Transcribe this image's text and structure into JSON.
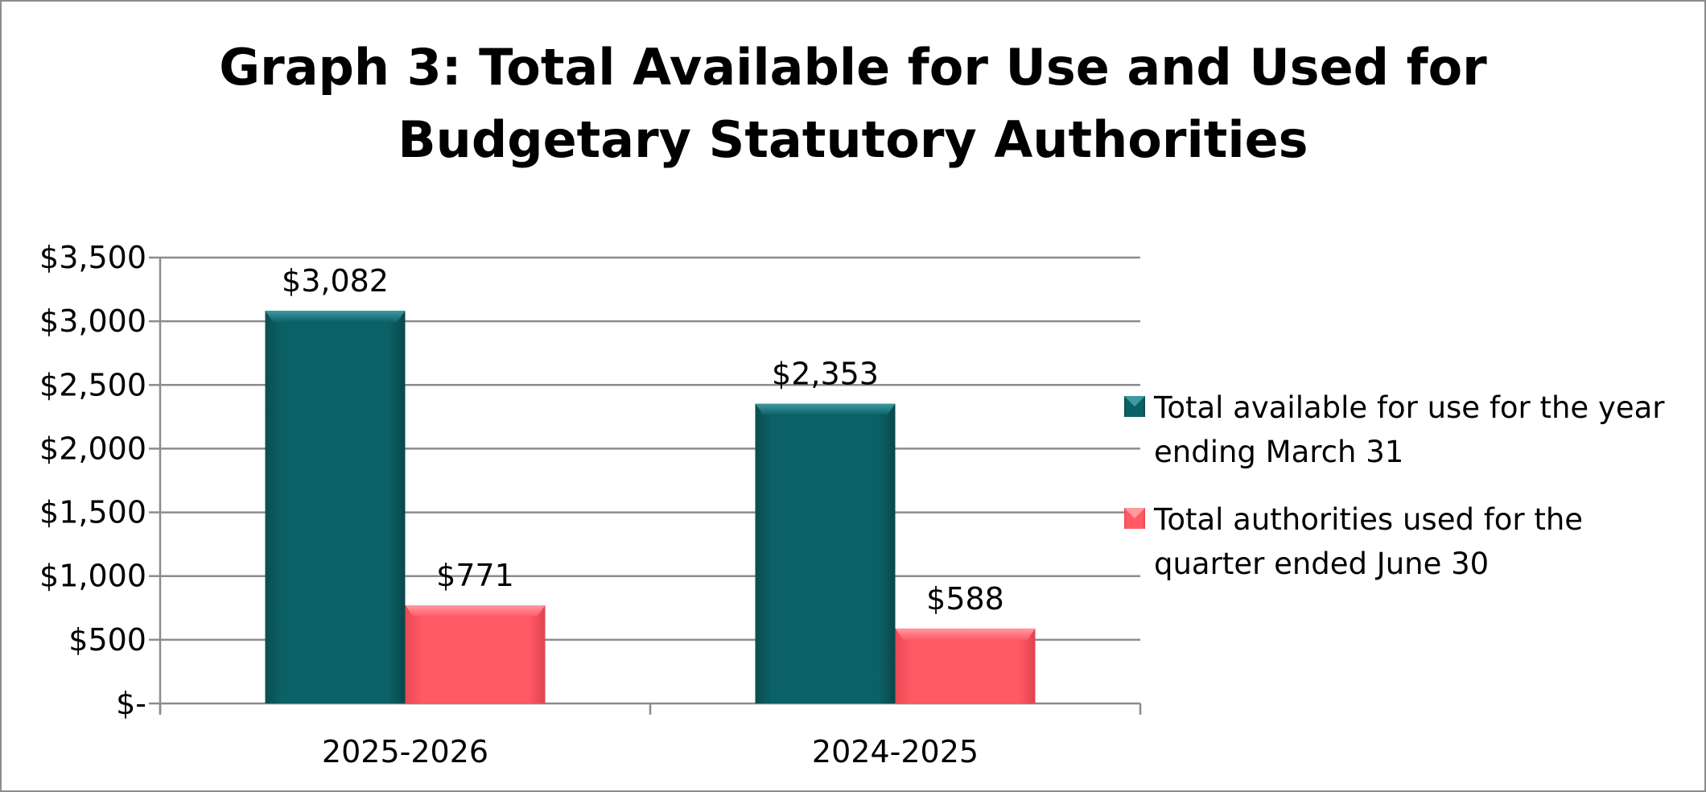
{
  "chart_data": {
    "type": "bar",
    "title": "Graph 3: Total Available for Use and Used for Budgetary Statutory Authorities",
    "title_lines": [
      "Graph 3: Total Available for Use and Used for",
      "Budgetary Statutory Authorities"
    ],
    "categories": [
      "2025-2026",
      "2024-2025"
    ],
    "series": [
      {
        "name": "Total available for use for the year ending March 31",
        "legend_lines": [
          "Total available for use for the year",
          "ending March 31"
        ],
        "values": [
          3082,
          2353
        ],
        "data_labels": [
          "$3,082",
          "$2,353"
        ],
        "color": "#0b5e63"
      },
      {
        "name": "Total authorities used for the quarter ended June 30",
        "legend_lines": [
          "Total authorities used for the",
          "quarter ended June 30"
        ],
        "values": [
          771,
          588
        ],
        "data_labels": [
          "$771",
          "$588"
        ],
        "color": "#ff5661"
      }
    ],
    "ylim": [
      0,
      3500
    ],
    "y_ticks": [
      0,
      500,
      1000,
      1500,
      2000,
      2500,
      3000,
      3500
    ],
    "y_tick_labels": [
      "$-",
      "$500",
      "$1,000",
      "$1,500",
      "$2,000",
      "$2,500",
      "$3,000",
      "$3,500"
    ],
    "xlabel": "",
    "ylabel": "",
    "grid": true,
    "legend_position": "right"
  }
}
